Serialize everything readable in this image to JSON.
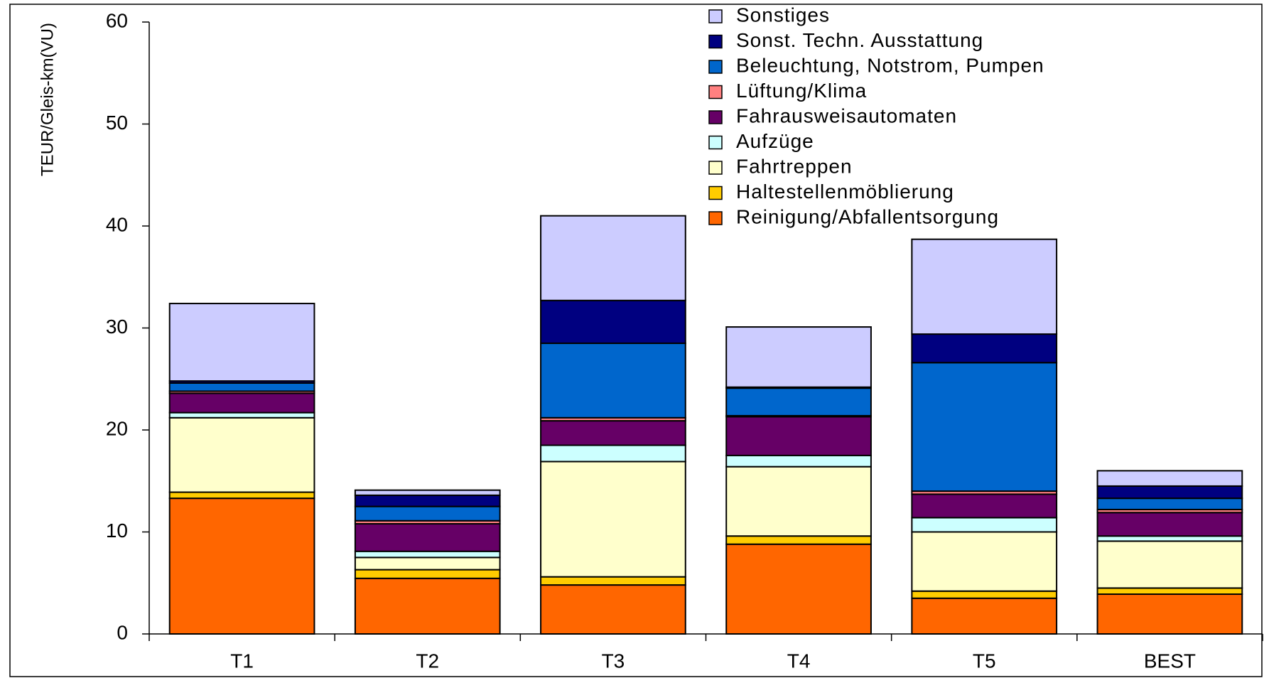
{
  "chart_data": {
    "type": "stacked_bar",
    "y_label": "TEUR/Gleis-km(VU)",
    "categories": [
      "T1",
      "T2",
      "T3",
      "T4",
      "T5",
      "BEST"
    ],
    "series": [
      {
        "name": "Reinigung/Abfallentsorgung",
        "color": "#ff6600",
        "values": [
          13.3,
          5.45,
          4.8,
          8.8,
          3.5,
          3.9
        ]
      },
      {
        "name": "Haltestellenmöblierung",
        "color": "#ffcc00",
        "values": [
          0.6,
          0.85,
          0.8,
          0.8,
          0.7,
          0.6
        ]
      },
      {
        "name": "Fahrtreppen",
        "color": "#ffffcc",
        "values": [
          7.3,
          1.2,
          11.3,
          6.8,
          5.8,
          4.6
        ]
      },
      {
        "name": "Aufzüge",
        "color": "#ccffff",
        "values": [
          0.5,
          0.6,
          1.6,
          1.1,
          1.4,
          0.5
        ]
      },
      {
        "name": "Fahrausweisautomaten",
        "color": "#660066",
        "values": [
          1.9,
          2.7,
          2.4,
          3.8,
          2.3,
          2.3
        ]
      },
      {
        "name": "Lüftung/Klima",
        "color": "#ff8080",
        "values": [
          0.2,
          0.3,
          0.3,
          0.1,
          0.3,
          0.3
        ]
      },
      {
        "name": "Beleuchtung, Notstrom, Pumpen",
        "color": "#0066cc",
        "values": [
          0.8,
          1.4,
          7.3,
          2.7,
          12.6,
          1.1
        ]
      },
      {
        "name": "Sonst. Techn. Ausstattung",
        "color": "#000080",
        "values": [
          0.2,
          1.1,
          4.2,
          0.1,
          2.8,
          1.2
        ]
      },
      {
        "name": "Sonstiges",
        "color": "#ccccff",
        "values": [
          7.6,
          0.5,
          8.3,
          5.9,
          9.3,
          1.5
        ]
      }
    ],
    "ylim": [
      0,
      60
    ],
    "yticks": [
      0,
      10,
      20,
      30,
      40,
      50,
      60
    ],
    "legend": "top-right"
  }
}
